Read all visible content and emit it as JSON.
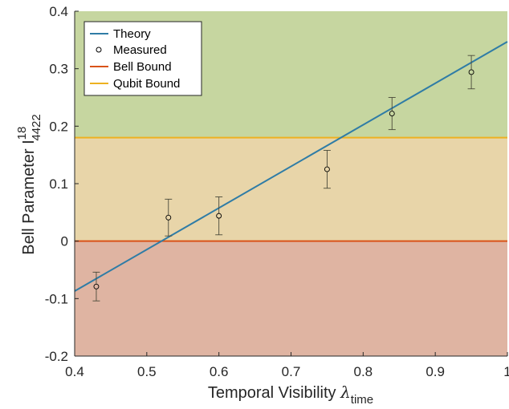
{
  "chart_data": {
    "type": "line",
    "xlabel": {
      "main": "Temporal Visibility ",
      "symbol": "λ",
      "subscript": "time"
    },
    "ylabel": {
      "main": "Bell Parameter I",
      "superscript": "18",
      "subscript": "4422"
    },
    "xlim": [
      0.4,
      1.0
    ],
    "ylim": [
      -0.2,
      0.4
    ],
    "xticks": [
      0.4,
      0.5,
      0.6,
      0.7,
      0.8,
      0.9,
      1.0
    ],
    "xtick_labels": [
      "0.4",
      "0.5",
      "0.6",
      "0.7",
      "0.8",
      "0.9",
      "1"
    ],
    "yticks": [
      -0.2,
      -0.1,
      0.0,
      0.1,
      0.2,
      0.3,
      0.4
    ],
    "ytick_labels": [
      "-0.2",
      "-0.1",
      "0",
      "0.1",
      "0.2",
      "0.3",
      "0.4"
    ],
    "grid": false,
    "legend_position": "top-left",
    "regions": [
      {
        "name": "above-qubit-bound",
        "y_from": 0.18,
        "y_to": 0.4,
        "color": "#c6d6a0"
      },
      {
        "name": "between-bounds",
        "y_from": 0.0,
        "y_to": 0.18,
        "color": "#e8d5a9"
      },
      {
        "name": "below-bell-bound",
        "y_from": -0.2,
        "y_to": 0.0,
        "color": "#dfb4a2"
      }
    ],
    "series": [
      {
        "name": "Theory",
        "kind": "line",
        "color": "#2f7ca6",
        "x": [
          0.4,
          1.0
        ],
        "y": [
          -0.087,
          0.347
        ]
      },
      {
        "name": "Measured",
        "kind": "errorbar",
        "color": "#000000",
        "x": [
          0.43,
          0.53,
          0.6,
          0.75,
          0.84,
          0.95
        ],
        "y": [
          -0.079,
          0.041,
          0.044,
          0.125,
          0.222,
          0.294
        ],
        "err": [
          0.025,
          0.032,
          0.033,
          0.033,
          0.028,
          0.029
        ]
      },
      {
        "name": "Bell Bound",
        "kind": "hline",
        "color": "#d95319",
        "value": 0.0
      },
      {
        "name": "Qubit Bound",
        "kind": "hline",
        "color": "#edb120",
        "value": 0.18
      }
    ]
  }
}
